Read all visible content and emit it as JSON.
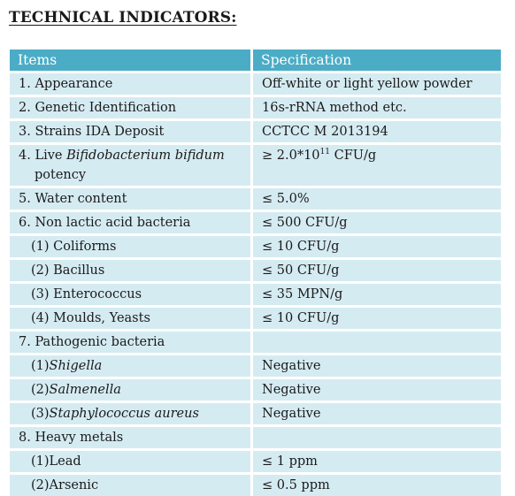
{
  "heading": "TECHNICAL INDICATORS:",
  "columns": {
    "items": "Items",
    "spec": "Specification"
  },
  "rows": {
    "appearance": {
      "item": "1. Appearance",
      "spec": "Off-white or light yellow powder"
    },
    "genetic": {
      "item": "2. Genetic Identification",
      "spec": "16s-rRNA method etc."
    },
    "strains": {
      "item": "3. Strains IDA Deposit",
      "spec": "CCTCC M 2013194"
    },
    "potency": {
      "item_prefix": "4. Live ",
      "item_italic": "Bifidobacterium bifidum",
      "item_line2": "potency",
      "spec_prefix": "≥ 2.0*10",
      "spec_exp": "11",
      "spec_suffix": " CFU/g"
    },
    "water": {
      "item": "5. Water content",
      "spec": "≤ 5.0%"
    },
    "non_lactic": {
      "item": "6. Non lactic acid bacteria",
      "spec": "≤ 500 CFU/g"
    },
    "coliforms": {
      "item": "(1) Coliforms",
      "spec": "≤ 10 CFU/g"
    },
    "bacillus": {
      "item": "(2) Bacillus",
      "spec": "≤ 50 CFU/g"
    },
    "enterococcus": {
      "item": "(3) Enterococcus",
      "spec": "≤ 35 MPN/g"
    },
    "moulds": {
      "item": "(4) Moulds, Yeasts",
      "spec": "≤ 10 CFU/g"
    },
    "pathogenic": {
      "item": "7. Pathogenic bacteria",
      "spec": ""
    },
    "shigella": {
      "num": "(1)",
      "name": "Shigella",
      "spec": "Negative"
    },
    "salmenella": {
      "num": "(2)",
      "name": "Salmenella",
      "spec": "Negative"
    },
    "staph": {
      "num": "(3)",
      "name": "Staphylococcus aureus",
      "spec": "Negative"
    },
    "heavy": {
      "item": "8. Heavy metals",
      "spec": ""
    },
    "lead": {
      "item": "(1)Lead",
      "spec": "≤ 1 ppm"
    },
    "arsenic": {
      "item": "(2)Arsenic",
      "spec": "≤ 0.5 ppm"
    }
  }
}
